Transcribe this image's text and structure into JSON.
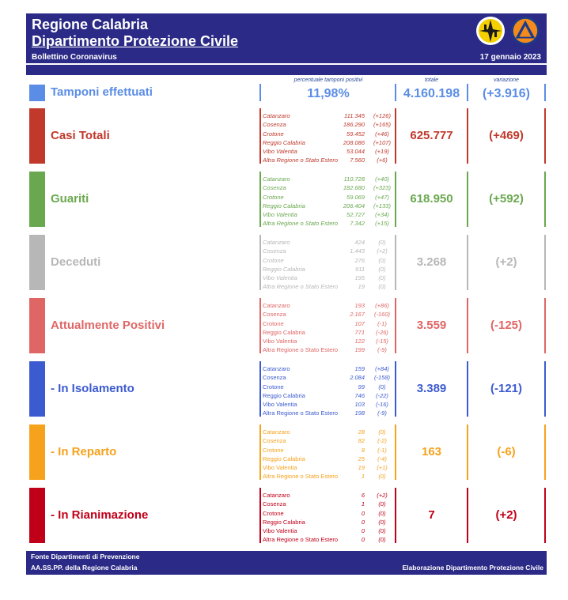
{
  "header": {
    "title_line1": "Regione Calabria",
    "title_line2": "Dipartimento Protezione Civile",
    "subtitle": "Bollettino Coronavirus",
    "date": "17 gennaio 2023"
  },
  "colors": {
    "navy": "#2b2a87",
    "tamponi": "#5b8de6",
    "casi": "#c0392b",
    "guariti": "#6aa84f",
    "deceduti": "#b7b7b7",
    "positivi": "#e06666",
    "isolamento": "#3c5bd0",
    "reparto": "#f6a21d",
    "rianimazione": "#c00018"
  },
  "tamponi": {
    "label": "Tamponi effettuati",
    "pct_header": "percentuale tamponi positivi",
    "pct_value": "11,98%",
    "tot_header": "totale",
    "tot_value": "4.160.198",
    "var_header": "variazione",
    "var_value": "(+3.916)"
  },
  "rows": [
    {
      "name": "Casi Totali",
      "total": "625.777",
      "variation": "(+469)",
      "italic": true,
      "provinces": [
        {
          "n": "Catanzaro",
          "v": "111.345",
          "d": "(+126)"
        },
        {
          "n": "Cosenza",
          "v": "186.290",
          "d": "(+165)"
        },
        {
          "n": "Crotone",
          "v": "59.452",
          "d": "(+46)"
        },
        {
          "n": "Reggio Calabria",
          "v": "208.086",
          "d": "(+107)"
        },
        {
          "n": "Vibo Valentia",
          "v": "53.044",
          "d": "(+19)"
        },
        {
          "n": "Altra Regione o Stato Estero",
          "v": "7.560",
          "d": "(+6)"
        }
      ]
    },
    {
      "name": "Guariti",
      "total": "618.950",
      "variation": "(+592)",
      "italic": true,
      "provinces": [
        {
          "n": "Catanzaro",
          "v": "110.728",
          "d": "(+40)"
        },
        {
          "n": "Cosenza",
          "v": "182.680",
          "d": "(+323)"
        },
        {
          "n": "Crotone",
          "v": "59.069",
          "d": "(+47)"
        },
        {
          "n": "Reggio Calabria",
          "v": "206.404",
          "d": "(+133)"
        },
        {
          "n": "Vibo Valentia",
          "v": "52.727",
          "d": "(+34)"
        },
        {
          "n": "Altra Regione o Stato Estero",
          "v": "7.342",
          "d": "(+15)"
        }
      ]
    },
    {
      "name": "Deceduti",
      "total": "3.268",
      "variation": "(+2)",
      "italic": true,
      "provinces": [
        {
          "n": "Catanzaro",
          "v": "424",
          "d": "(0)"
        },
        {
          "n": "Cosenza",
          "v": "1.443",
          "d": "(+2)"
        },
        {
          "n": "Crotone",
          "v": "276",
          "d": "(0)"
        },
        {
          "n": "Reggio Calabria",
          "v": "911",
          "d": "(0)"
        },
        {
          "n": "Vibo Valentia",
          "v": "195",
          "d": "(0)"
        },
        {
          "n": "Altra Regione o Stato Estero",
          "v": "19",
          "d": "(0)"
        }
      ]
    },
    {
      "name": "Attualmente Positivi",
      "total": "3.559",
      "variation": "(-125)",
      "italic": false,
      "provinces": [
        {
          "n": "Catanzaro",
          "v": "193",
          "d": "(+86)"
        },
        {
          "n": "Cosenza",
          "v": "2.167",
          "d": "(-160)"
        },
        {
          "n": "Crotone",
          "v": "107",
          "d": "(-1)"
        },
        {
          "n": "Reggio Calabria",
          "v": "771",
          "d": "(-26)"
        },
        {
          "n": "Vibo Valentia",
          "v": "122",
          "d": "(-15)"
        },
        {
          "n": "Altra Regione o Stato Estero",
          "v": "199",
          "d": "(-9)"
        }
      ]
    },
    {
      "name": " - In Isolamento",
      "total": "3.389",
      "variation": "(-121)",
      "italic": false,
      "provinces": [
        {
          "n": "Catanzaro",
          "v": "159",
          "d": "(+84)"
        },
        {
          "n": "Cosenza",
          "v": "2.084",
          "d": "(-158)"
        },
        {
          "n": "Crotone",
          "v": "99",
          "d": "(0)"
        },
        {
          "n": "Reggio Calabria",
          "v": "746",
          "d": "(-22)"
        },
        {
          "n": "Vibo Valentia",
          "v": "103",
          "d": "(-16)"
        },
        {
          "n": "Altra Regione o Stato Estero",
          "v": "198",
          "d": "(-9)"
        }
      ]
    },
    {
      "name": " - In Reparto",
      "total": "163",
      "variation": "(-6)",
      "italic": false,
      "provinces": [
        {
          "n": "Catanzaro",
          "v": "28",
          "d": "(0)"
        },
        {
          "n": "Cosenza",
          "v": "82",
          "d": "(-2)"
        },
        {
          "n": "Crotone",
          "v": "8",
          "d": "(-1)"
        },
        {
          "n": "Reggio Calabria",
          "v": "25",
          "d": "(-4)"
        },
        {
          "n": "Vibo Valentia",
          "v": "19",
          "d": "(+1)"
        },
        {
          "n": "Altra Regione o Stato Estero",
          "v": "1",
          "d": "(0)"
        }
      ]
    },
    {
      "name": " - In Rianimazione",
      "total": "7",
      "variation": "(+2)",
      "italic": false,
      "provinces": [
        {
          "n": "Catanzaro",
          "v": "6",
          "d": "(+2)"
        },
        {
          "n": "Cosenza",
          "v": "1",
          "d": "(0)"
        },
        {
          "n": "Crotone",
          "v": "0",
          "d": "(0)"
        },
        {
          "n": "Reggio Calabria",
          "v": "0",
          "d": "(0)"
        },
        {
          "n": "Vibo Valentia",
          "v": "0",
          "d": "(0)"
        },
        {
          "n": "Altra Regione o Stato Estero",
          "v": "0",
          "d": "(0)"
        }
      ]
    }
  ],
  "footer": {
    "line1": "Fonte Dipartimenti di Prevenzione",
    "line2": "AA.SS.PP.  della Regione Calabria",
    "credit": "Elaborazione Dipartimento Protezione Civile"
  }
}
